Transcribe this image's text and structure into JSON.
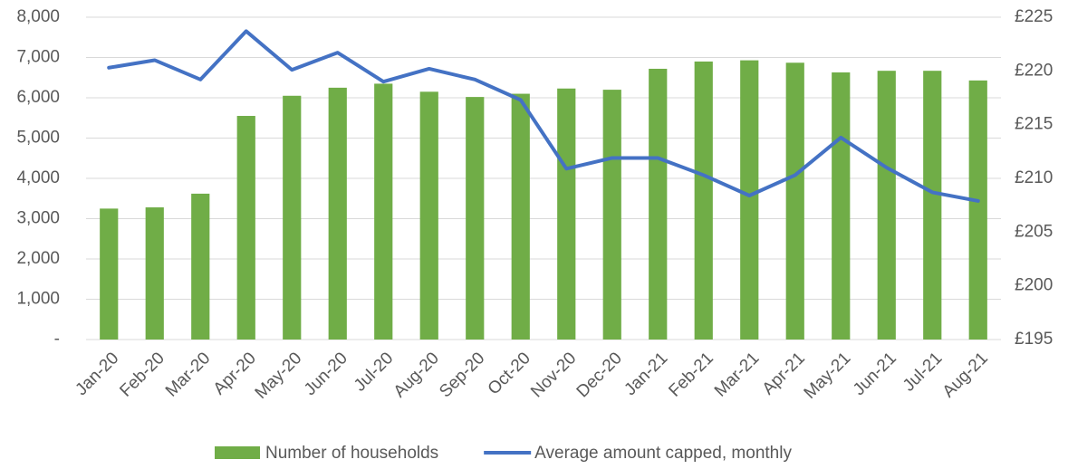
{
  "chart_data": {
    "type": "bar_line",
    "categories": [
      "Jan-20",
      "Feb-20",
      "Mar-20",
      "Apr-20",
      "May-20",
      "Jun-20",
      "Jul-20",
      "Aug-20",
      "Sep-20",
      "Oct-20",
      "Nov-20",
      "Dec-20",
      "Jan-21",
      "Feb-21",
      "Mar-21",
      "Apr-21",
      "May-21",
      "Jun-21",
      "Jul-21",
      "Aug-21"
    ],
    "series": [
      {
        "name": "Number of households",
        "type": "bar",
        "color": "#70ad47",
        "axis": "y",
        "values": [
          3250,
          3280,
          3620,
          5550,
          6050,
          6250,
          6350,
          6150,
          6020,
          6100,
          6230,
          6200,
          6720,
          6900,
          6930,
          6870,
          6630,
          6670,
          6670,
          6430
        ]
      },
      {
        "name": "Average amount capped, monthly",
        "type": "line",
        "color": "#4472c4",
        "axis": "y2",
        "values": [
          220.3,
          221.0,
          219.2,
          223.7,
          220.1,
          221.7,
          219.0,
          220.2,
          219.2,
          217.3,
          210.9,
          211.9,
          211.9,
          210.3,
          208.4,
          210.3,
          213.8,
          211.0,
          208.7,
          207.9
        ]
      }
    ],
    "ylim": [
      0,
      8000
    ],
    "yticks": [
      {
        "value": 0,
        "label": "-"
      },
      {
        "value": 1000,
        "label": "1,000"
      },
      {
        "value": 2000,
        "label": "2,000"
      },
      {
        "value": 3000,
        "label": "3,000"
      },
      {
        "value": 4000,
        "label": "4,000"
      },
      {
        "value": 5000,
        "label": "5,000"
      },
      {
        "value": 6000,
        "label": "6,000"
      },
      {
        "value": 7000,
        "label": "7,000"
      },
      {
        "value": 8000,
        "label": "8,000"
      }
    ],
    "y2lim": [
      195,
      225
    ],
    "y2ticks": [
      {
        "value": 195,
        "label": "£195"
      },
      {
        "value": 200,
        "label": "£200"
      },
      {
        "value": 205,
        "label": "£205"
      },
      {
        "value": 210,
        "label": "£210"
      },
      {
        "value": 215,
        "label": "£215"
      },
      {
        "value": 220,
        "label": "£220"
      },
      {
        "value": 225,
        "label": "£225"
      }
    ],
    "grid": true,
    "legend": "bottom"
  }
}
